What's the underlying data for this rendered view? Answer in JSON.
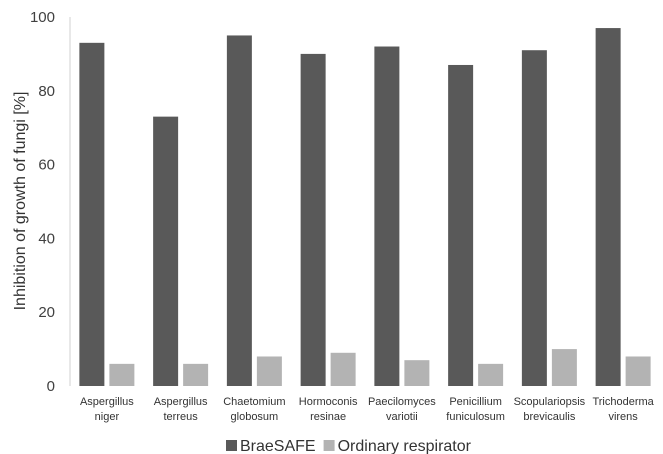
{
  "chart_data": {
    "type": "bar",
    "title": "",
    "xlabel": "",
    "ylabel": "Inhibition of growth of fungi [%]",
    "ylim": [
      0,
      100
    ],
    "yticks": [
      0,
      20,
      40,
      60,
      80,
      100
    ],
    "grid": false,
    "legend_position": "bottom",
    "categories": [
      [
        "Aspergillus",
        "niger"
      ],
      [
        "Aspergillus",
        "terreus"
      ],
      [
        "Chaetomium",
        "globosum"
      ],
      [
        "Hormoconis",
        "resinae"
      ],
      [
        "Paecilomyces",
        "variotii"
      ],
      [
        "Penicillium",
        "funiculosum"
      ],
      [
        "Scopulariopsis",
        "brevicaulis"
      ],
      [
        "Trichoderma",
        "virens"
      ]
    ],
    "series": [
      {
        "name": "BraeSAFE",
        "color": "#595959",
        "values": [
          93,
          73,
          95,
          90,
          92,
          87,
          91,
          97
        ]
      },
      {
        "name": "Ordinary respirator",
        "color": "#b3b3b3",
        "values": [
          6,
          6,
          8,
          9,
          7,
          6,
          10,
          8
        ]
      }
    ]
  }
}
